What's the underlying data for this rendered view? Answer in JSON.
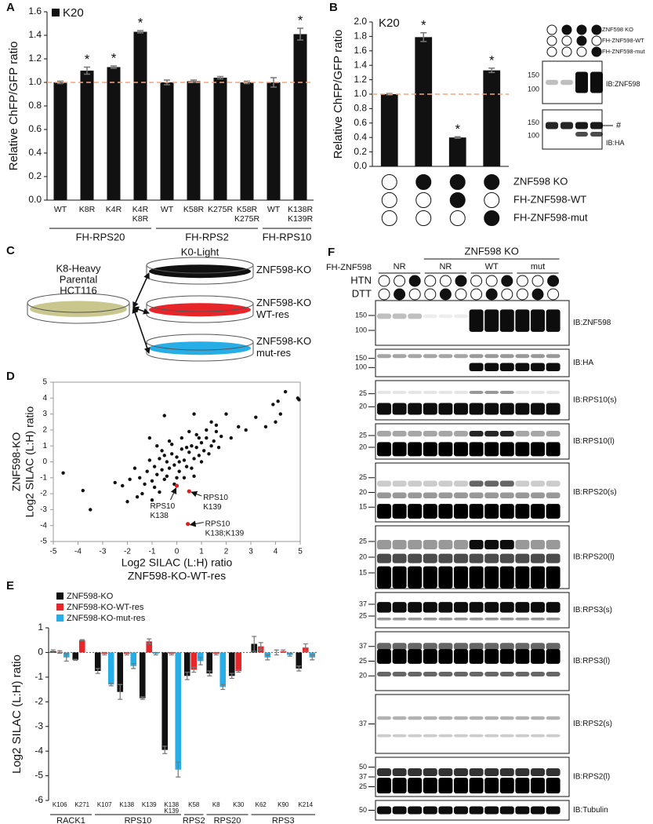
{
  "panels": {
    "A": {
      "label": "A",
      "type": "bar",
      "legend": "K20",
      "ylabel": "Relative ChFP/GFP ratio",
      "categories": [
        [
          "WT"
        ],
        [
          "K8R"
        ],
        [
          "K4R"
        ],
        [
          "K4R",
          "K8R"
        ],
        [
          "WT"
        ],
        [
          "K58R"
        ],
        [
          "K275R"
        ],
        [
          "K58R",
          "K275R"
        ],
        [
          "WT"
        ],
        [
          "K138R",
          "K139R"
        ]
      ],
      "values": [
        1.0,
        1.1,
        1.13,
        1.43,
        1.0,
        1.01,
        1.04,
        1.0,
        1.0,
        1.41
      ],
      "errors": [
        0.01,
        0.03,
        0.01,
        0.01,
        0.02,
        0.01,
        0.01,
        0.01,
        0.04,
        0.05
      ],
      "significant": [
        false,
        true,
        true,
        true,
        false,
        false,
        false,
        false,
        false,
        true
      ],
      "significance_label": "*",
      "groups": [
        {
          "name": "FH-RPS20",
          "from": 0,
          "to": 3
        },
        {
          "name": "FH-RPS2",
          "from": 4,
          "to": 7
        },
        {
          "name": "FH-RPS10",
          "from": 8,
          "to": 9
        }
      ],
      "reference_line": 1,
      "reference_color": "#f4a582",
      "color": "#111111",
      "ylim": [
        0,
        1.6
      ],
      "yticks": [
        {
          "value": 0,
          "label": "0.0"
        },
        0.2,
        0.4,
        0.6,
        0.8,
        {
          "value": 1,
          "label": "1.0"
        },
        1.2,
        1.4,
        1.6
      ]
    },
    "B": {
      "label": "B",
      "type": "bar",
      "legend": "K20",
      "ylabel": "Relative ChFP/GFP ratio",
      "values": [
        1.0,
        1.79,
        0.4,
        1.33
      ],
      "errors": [
        0.01,
        0.06,
        0.01,
        0.03
      ],
      "significant": [
        false,
        true,
        true,
        true
      ],
      "significance_label": "*",
      "reference_line": 1,
      "reference_color": "#f4a582",
      "color": "#111111",
      "ylim": [
        0,
        2
      ],
      "yticks": [
        {
          "value": 0,
          "label": "0.0"
        },
        0.2,
        0.4,
        0.6,
        0.8,
        {
          "value": 1,
          "label": "1.0"
        },
        1.2,
        1.4,
        1.6,
        1.8,
        {
          "value": 2,
          "label": "2.0"
        }
      ],
      "conditions": [
        {
          "name": "ZNF598 KO",
          "filled": [
            false,
            true,
            true,
            true
          ]
        },
        {
          "name": "FH-ZNF598-WT",
          "filled": [
            false,
            false,
            true,
            false
          ]
        },
        {
          "name": "FH-ZNF598-mut",
          "filled": [
            false,
            false,
            false,
            true
          ]
        }
      ],
      "blots": [
        {
          "label": "IB:ZNF598",
          "markers": [
            150,
            100
          ]
        },
        {
          "label": "IB:HA",
          "markers": [
            150,
            100
          ],
          "annotation": "#"
        }
      ]
    },
    "C": {
      "label": "C",
      "source": {
        "lines": [
          "K8-Heavy",
          "Parental",
          "HCT116"
        ],
        "color": "#c9c68e"
      },
      "target_title": "K0-Light",
      "targets": [
        {
          "lines": [
            "ZNF598-KO"
          ],
          "color": "#111111"
        },
        {
          "lines": [
            "ZNF598-KO",
            "WT-res"
          ],
          "color": "#e8262a"
        },
        {
          "lines": [
            "ZNF598-KO",
            "mut-res"
          ],
          "color": "#27aee6"
        }
      ]
    },
    "D": {
      "label": "D",
      "type": "scatter",
      "xlabel": [
        "Log2 SILAC (L:H) ratio",
        "ZNF598-KO-WT-res"
      ],
      "ylabel": [
        "ZNF598-KO",
        "Log2 SILAC (L:H) ratio"
      ],
      "xlim": [
        -5,
        5
      ],
      "ylim": [
        -5,
        5
      ],
      "xticks": [
        -5,
        -4,
        -3,
        -2,
        -1,
        0,
        1,
        2,
        3,
        4,
        5
      ],
      "yticks": [
        -5,
        -4,
        -3,
        -2,
        -1,
        0,
        1,
        2,
        3,
        4,
        5
      ],
      "points": {
        "color": "#111111",
        "x": [
          -4.6,
          -3.8,
          -3.5,
          -2.5,
          -2.2,
          -2.0,
          -1.6,
          -1.0,
          3.2,
          3.6,
          4.0,
          4.2,
          4.4,
          4.95,
          4.9,
          3.9,
          4.1,
          -0.5,
          0.7,
          -1.1,
          1.6,
          2.0,
          2.5,
          -1.5,
          -1.2,
          -1.0,
          -0.9,
          -0.8,
          -0.7,
          -0.6,
          -0.5,
          -0.4,
          -0.3,
          -0.2,
          -0.1,
          0.0,
          0.1,
          0.2,
          0.3,
          0.4,
          0.5,
          0.6,
          0.7,
          0.8,
          0.9,
          1.0,
          1.1,
          1.2,
          1.3,
          1.4,
          1.5,
          1.7,
          1.8,
          -1.3,
          -1.1,
          -0.9,
          -0.6,
          -0.4,
          -0.2,
          0.0,
          0.2,
          0.4,
          0.6,
          0.8,
          1.0,
          1.2,
          -0.7,
          -0.3,
          0.1,
          0.5,
          0.9,
          1.6,
          -1.7,
          -1.9,
          -0.5,
          0.3,
          1.4,
          -0.8,
          2.2,
          2.8,
          -1.4,
          0.7,
          -0.1
        ],
        "y": [
          -0.7,
          -1.8,
          -3.0,
          -1.3,
          -1.5,
          -2.5,
          -2.2,
          -2.4,
          2.8,
          2.2,
          2.5,
          3.0,
          4.4,
          3.9,
          4.0,
          3.6,
          3.8,
          2.9,
          3.0,
          1.5,
          1.9,
          3.0,
          2.2,
          -1.0,
          -0.6,
          -1.2,
          -0.3,
          -0.8,
          0.2,
          -0.5,
          -1.1,
          0.0,
          -0.4,
          0.5,
          -0.2,
          0.3,
          -0.6,
          0.8,
          0.1,
          -0.3,
          0.6,
          1.0,
          0.2,
          0.9,
          0.4,
          1.2,
          0.7,
          1.5,
          0.5,
          1.0,
          1.3,
          0.9,
          1.6,
          -1.4,
          0.1,
          -1.6,
          0.7,
          -0.9,
          1.1,
          -1.0,
          1.5,
          0.9,
          -0.4,
          1.7,
          0.0,
          2.0,
          -1.9,
          1.3,
          0.0,
          1.9,
          1.5,
          2.3,
          -0.4,
          -1.1,
          0.4,
          -1.0,
          2.5,
          1.0,
          1.5,
          2.0,
          -2.0,
          -0.9,
          -1.4
        ]
      },
      "highlight": {
        "color": "#e41a1c",
        "x": [
          0.0,
          0.5,
          0.45
        ],
        "y": [
          -1.5,
          -1.85,
          -3.9
        ],
        "labels": [
          [
            "RPS10",
            "K138"
          ],
          [
            "RPS10",
            "K139"
          ],
          [
            "RPS10",
            "K138;K139"
          ]
        ]
      }
    },
    "E": {
      "label": "E",
      "type": "grouped_bar",
      "ylabel": "Log2 SILAC (L:H) ratio",
      "categories": [
        [
          "K106"
        ],
        [
          "K271"
        ],
        [
          "K107"
        ],
        [
          "K138"
        ],
        [
          "K139"
        ],
        [
          "K138",
          "K139"
        ],
        [
          "K58"
        ],
        [
          "K8"
        ],
        [
          "K30"
        ],
        [
          "K62"
        ],
        [
          "K90"
        ],
        [
          "K214"
        ]
      ],
      "groups": [
        {
          "name": "RACK1",
          "from": 0,
          "to": 1
        },
        {
          "name": "RPS10",
          "from": 2,
          "to": 5
        },
        {
          "name": "RPS2",
          "from": 6,
          "to": 6
        },
        {
          "name": "RPS20",
          "from": 7,
          "to": 8
        },
        {
          "name": "RPS3",
          "from": 9,
          "to": 11
        }
      ],
      "series": [
        {
          "name": "ZNF598-KO",
          "color": "#111111",
          "values": [
            0.05,
            -0.3,
            -0.75,
            -1.6,
            -1.85,
            -3.95,
            -0.95,
            -0.85,
            -0.95,
            0.35,
            0.0,
            -0.65
          ],
          "errors": [
            0.05,
            0.02,
            0.1,
            0.3,
            0.05,
            0.15,
            0.15,
            0.1,
            0.1,
            0.3,
            0.1,
            0.1
          ]
        },
        {
          "name": "ZNF598-KO-WT-res",
          "color": "#e8262a",
          "values": [
            0.02,
            0.5,
            -0.05,
            -0.05,
            0.45,
            -0.05,
            -0.7,
            -0.05,
            -0.75,
            0.25,
            0.05,
            0.2
          ],
          "errors": [
            0.05,
            0.02,
            0.05,
            0.05,
            0.1,
            0.05,
            0.1,
            0.05,
            0.05,
            0.15,
            0.05,
            0.15
          ]
        },
        {
          "name": "ZNF598-KO-mut-res",
          "color": "#27aee6",
          "values": [
            -0.2,
            null,
            -1.3,
            -0.55,
            -0.05,
            -4.75,
            -0.35,
            -1.4,
            null,
            -0.2,
            -0.1,
            -0.2
          ],
          "errors": [
            0.15,
            null,
            0.05,
            0.1,
            0.05,
            0.3,
            0.15,
            0.1,
            null,
            0.1,
            0.05,
            0.1
          ]
        }
      ],
      "ylim": [
        -6,
        1
      ],
      "yticks": [
        -6,
        -5,
        -4,
        -3,
        -2,
        -1,
        0,
        1
      ]
    },
    "F": {
      "label": "F",
      "title": "ZNF598 KO",
      "title_from": 3,
      "title_to": 11,
      "row_label": "FH-ZNF598",
      "groups": [
        {
          "name": "NR",
          "from": 0,
          "to": 2
        },
        {
          "name": "NR",
          "from": 3,
          "to": 5
        },
        {
          "name": "WT",
          "from": 6,
          "to": 8
        },
        {
          "name": "mut",
          "from": 9,
          "to": 11
        }
      ],
      "conditions": [
        {
          "name": "HTN",
          "filled": [
            false,
            false,
            true,
            false,
            false,
            true,
            false,
            false,
            true,
            false,
            false,
            true
          ]
        },
        {
          "name": "DTT",
          "filled": [
            false,
            true,
            false,
            false,
            true,
            false,
            false,
            true,
            false,
            false,
            true,
            false
          ]
        }
      ],
      "blots": [
        {
          "label": "IB:ZNF598",
          "markers": [
            150,
            100
          ]
        },
        {
          "label": "IB:HA",
          "markers": [
            150,
            100
          ]
        },
        {
          "label": "IB:RPS10(s)",
          "markers": [
            25,
            20
          ]
        },
        {
          "label": "IB:RPS10(l)",
          "markers": [
            25,
            20
          ]
        },
        {
          "label": "IB:RPS20(s)",
          "markers": [
            25,
            20,
            15
          ]
        },
        {
          "label": "IB:RPS20(l)",
          "markers": [
            25,
            20,
            15
          ]
        },
        {
          "label": "IB:RPS3(s)",
          "markers": [
            37,
            25
          ]
        },
        {
          "label": "IB:RPS3(l)",
          "markers": [
            37,
            25,
            20
          ]
        },
        {
          "label": "IB:RPS2(s)",
          "markers": [
            37
          ]
        },
        {
          "label": "IB:RPS2(l)",
          "markers": [
            50,
            37,
            25
          ]
        },
        {
          "label": "IB:Tubulin",
          "markers": [
            50
          ]
        }
      ]
    }
  }
}
